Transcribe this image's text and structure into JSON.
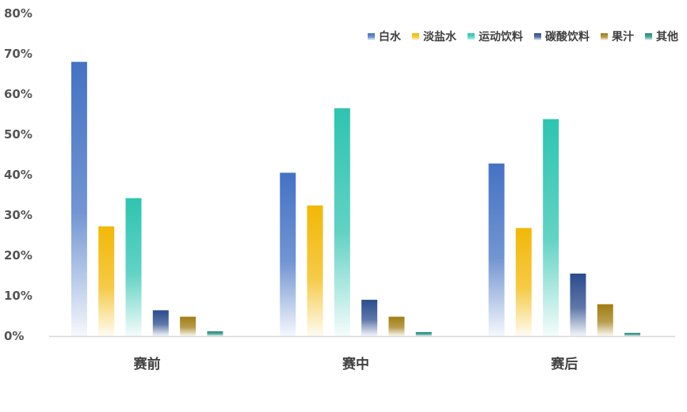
{
  "chart_data": {
    "type": "bar",
    "title": "",
    "xlabel": "",
    "ylabel": "",
    "ylim": [
      0,
      80
    ],
    "yticks": [
      "0%",
      "10%",
      "20%",
      "30%",
      "40%",
      "50%",
      "60%",
      "70%",
      "80%"
    ],
    "grid": false,
    "legend_position": "top-right",
    "categories": [
      "赛前",
      "赛中",
      "赛后"
    ],
    "series": [
      {
        "name": "白水",
        "values": [
          68.0,
          40.5,
          42.8
        ],
        "color": "#4472C4"
      },
      {
        "name": "淡盐水",
        "values": [
          27.2,
          32.4,
          26.8
        ],
        "color": "#F2B807"
      },
      {
        "name": "运动饮料",
        "values": [
          34.2,
          56.5,
          53.8
        ],
        "color": "#2EC4B0"
      },
      {
        "name": "碳酸饮料",
        "values": [
          6.4,
          9.0,
          15.5
        ],
        "color": "#2A4B8D"
      },
      {
        "name": "果汁",
        "values": [
          4.8,
          4.8,
          7.9
        ],
        "color": "#A07C10"
      },
      {
        "name": "其他",
        "values": [
          1.2,
          1.0,
          0.8
        ],
        "color": "#1E8B7C"
      }
    ]
  }
}
